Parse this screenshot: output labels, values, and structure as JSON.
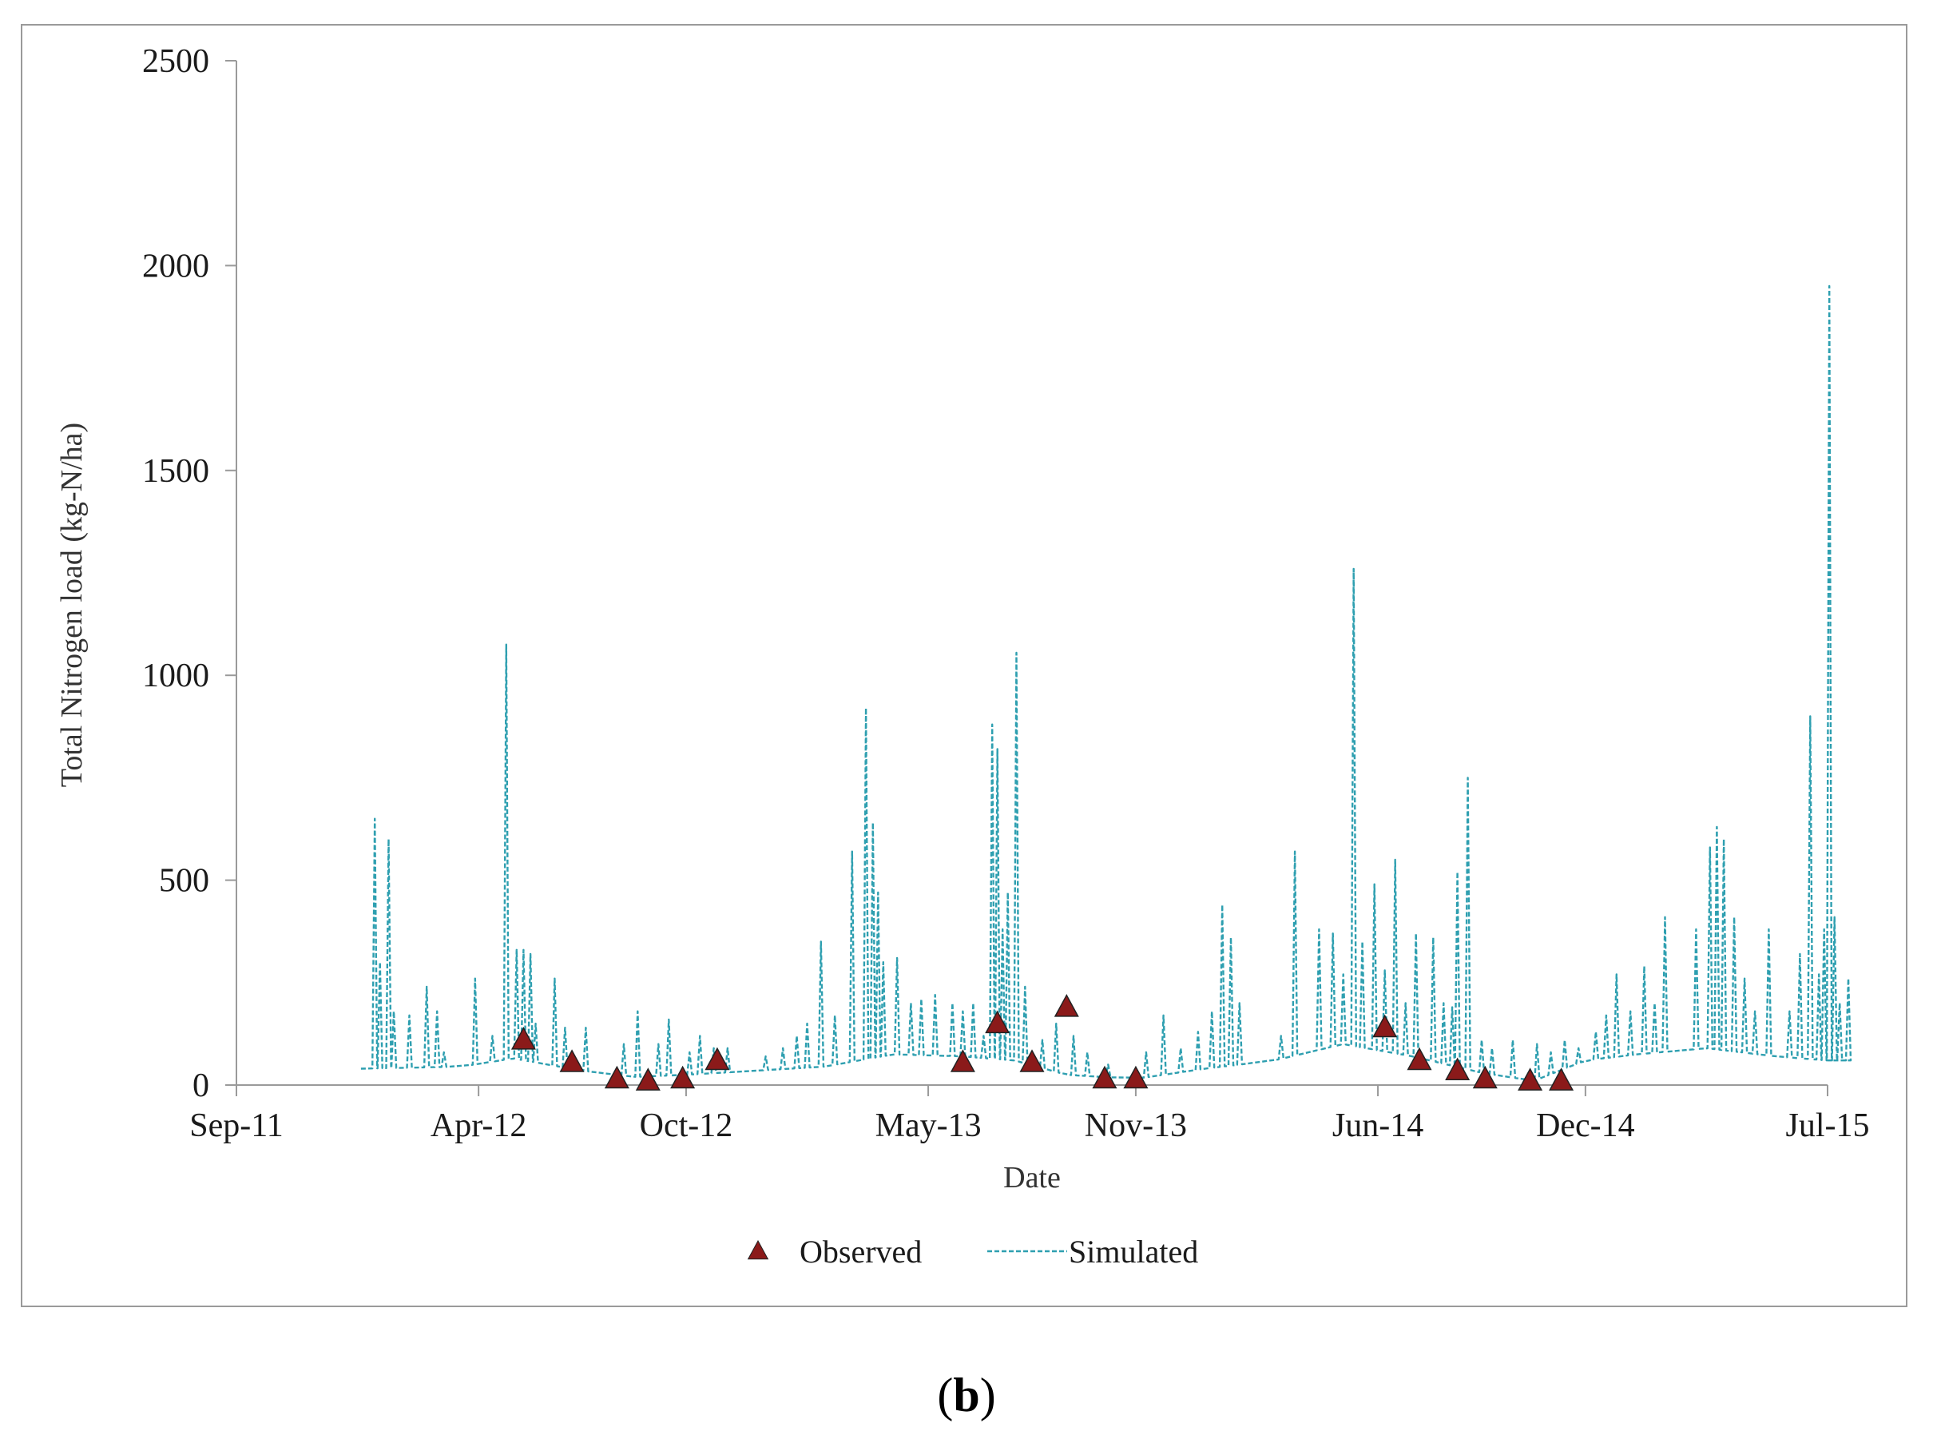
{
  "chart_data": {
    "type": "line",
    "title": "",
    "xlabel": "Date",
    "ylabel": "Total Nitrogen load (kg-N/ha)",
    "ylim": [
      0,
      2500
    ],
    "yticks": [
      0,
      500,
      1000,
      1500,
      2000,
      2500
    ],
    "xlim_months": [
      0,
      46
    ],
    "xticks": [
      {
        "label": "Sep-11",
        "month": 0
      },
      {
        "label": "Apr-12",
        "month": 7
      },
      {
        "label": "Oct-12",
        "month": 13
      },
      {
        "label": "May-13",
        "month": 20
      },
      {
        "label": "Nov-13",
        "month": 26
      },
      {
        "label": "Jun-14",
        "month": 33
      },
      {
        "label": "Dec-14",
        "month": 39
      },
      {
        "label": "Jul-15",
        "month": 46
      }
    ],
    "legend": [
      "Observed",
      "Simulated"
    ],
    "legend_position": "bottom-center",
    "colors": {
      "simulated": "#2e9fb0",
      "observed": "#8b1a1a",
      "observed_edge": "#222222",
      "frame": "#9a9a9a"
    },
    "series": [
      {
        "name": "Observed",
        "marker": "triangle",
        "points": [
          {
            "month": 8.3,
            "y": 110
          },
          {
            "month": 9.7,
            "y": 55
          },
          {
            "month": 11.0,
            "y": 15
          },
          {
            "month": 11.9,
            "y": 10
          },
          {
            "month": 12.9,
            "y": 15
          },
          {
            "month": 13.9,
            "y": 60
          },
          {
            "month": 21.0,
            "y": 55
          },
          {
            "month": 22.0,
            "y": 150
          },
          {
            "month": 23.0,
            "y": 55
          },
          {
            "month": 24.0,
            "y": 190
          },
          {
            "month": 25.1,
            "y": 15
          },
          {
            "month": 26.0,
            "y": 15
          },
          {
            "month": 33.2,
            "y": 140
          },
          {
            "month": 34.2,
            "y": 60
          },
          {
            "month": 35.3,
            "y": 35
          },
          {
            "month": 36.1,
            "y": 15
          },
          {
            "month": 37.4,
            "y": 10
          },
          {
            "month": 38.3,
            "y": 10
          }
        ]
      },
      {
        "name": "Simulated",
        "style": "dashed",
        "baseline": [
          {
            "month": 3.6,
            "y": 40
          },
          {
            "month": 6.5,
            "y": 45
          },
          {
            "month": 8.0,
            "y": 65
          },
          {
            "month": 10.0,
            "y": 35
          },
          {
            "month": 11.5,
            "y": 20
          },
          {
            "month": 13.0,
            "y": 25
          },
          {
            "month": 15.0,
            "y": 35
          },
          {
            "month": 17.0,
            "y": 45
          },
          {
            "month": 19.0,
            "y": 75
          },
          {
            "month": 21.0,
            "y": 70
          },
          {
            "month": 22.5,
            "y": 60
          },
          {
            "month": 24.0,
            "y": 25
          },
          {
            "month": 26.0,
            "y": 15
          },
          {
            "month": 28.0,
            "y": 40
          },
          {
            "month": 30.0,
            "y": 60
          },
          {
            "month": 32.0,
            "y": 100
          },
          {
            "month": 34.0,
            "y": 70
          },
          {
            "month": 36.0,
            "y": 30
          },
          {
            "month": 37.5,
            "y": 10
          },
          {
            "month": 39.0,
            "y": 60
          },
          {
            "month": 40.5,
            "y": 75
          },
          {
            "month": 42.5,
            "y": 90
          },
          {
            "month": 44.5,
            "y": 70
          },
          {
            "month": 46.0,
            "y": 60
          }
        ],
        "peaks": [
          {
            "month": 4.0,
            "y": 650
          },
          {
            "month": 4.15,
            "y": 300
          },
          {
            "month": 4.4,
            "y": 600
          },
          {
            "month": 4.55,
            "y": 180
          },
          {
            "month": 5.0,
            "y": 170
          },
          {
            "month": 5.5,
            "y": 240
          },
          {
            "month": 5.8,
            "y": 180
          },
          {
            "month": 6.0,
            "y": 80
          },
          {
            "month": 6.9,
            "y": 260
          },
          {
            "month": 7.4,
            "y": 120
          },
          {
            "month": 7.8,
            "y": 1075
          },
          {
            "month": 8.1,
            "y": 330
          },
          {
            "month": 8.3,
            "y": 330
          },
          {
            "month": 8.5,
            "y": 320
          },
          {
            "month": 8.65,
            "y": 150
          },
          {
            "month": 9.2,
            "y": 260
          },
          {
            "month": 9.5,
            "y": 140
          },
          {
            "month": 10.1,
            "y": 140
          },
          {
            "month": 11.2,
            "y": 100
          },
          {
            "month": 11.6,
            "y": 180
          },
          {
            "month": 12.2,
            "y": 100
          },
          {
            "month": 12.5,
            "y": 160
          },
          {
            "month": 13.1,
            "y": 80
          },
          {
            "month": 13.4,
            "y": 120
          },
          {
            "month": 13.8,
            "y": 90
          },
          {
            "month": 14.2,
            "y": 90
          },
          {
            "month": 15.3,
            "y": 70
          },
          {
            "month": 15.8,
            "y": 90
          },
          {
            "month": 16.2,
            "y": 120
          },
          {
            "month": 16.5,
            "y": 150
          },
          {
            "month": 16.9,
            "y": 350
          },
          {
            "month": 17.3,
            "y": 170
          },
          {
            "month": 17.8,
            "y": 570
          },
          {
            "month": 18.2,
            "y": 920
          },
          {
            "month": 18.4,
            "y": 640
          },
          {
            "month": 18.55,
            "y": 470
          },
          {
            "month": 18.7,
            "y": 300
          },
          {
            "month": 19.1,
            "y": 310
          },
          {
            "month": 19.5,
            "y": 200
          },
          {
            "month": 19.8,
            "y": 210
          },
          {
            "month": 20.2,
            "y": 220
          },
          {
            "month": 20.7,
            "y": 200
          },
          {
            "month": 21.0,
            "y": 180
          },
          {
            "month": 21.3,
            "y": 200
          },
          {
            "month": 21.6,
            "y": 120
          },
          {
            "month": 21.85,
            "y": 880
          },
          {
            "month": 22.0,
            "y": 820
          },
          {
            "month": 22.15,
            "y": 380
          },
          {
            "month": 22.3,
            "y": 470
          },
          {
            "month": 22.55,
            "y": 1055
          },
          {
            "month": 22.8,
            "y": 240
          },
          {
            "month": 23.3,
            "y": 110
          },
          {
            "month": 23.7,
            "y": 150
          },
          {
            "month": 24.2,
            "y": 120
          },
          {
            "month": 24.6,
            "y": 80
          },
          {
            "month": 25.2,
            "y": 50
          },
          {
            "month": 26.3,
            "y": 80
          },
          {
            "month": 26.8,
            "y": 170
          },
          {
            "month": 27.3,
            "y": 90
          },
          {
            "month": 27.8,
            "y": 130
          },
          {
            "month": 28.2,
            "y": 180
          },
          {
            "month": 28.5,
            "y": 440
          },
          {
            "month": 28.75,
            "y": 360
          },
          {
            "month": 29.0,
            "y": 200
          },
          {
            "month": 30.2,
            "y": 120
          },
          {
            "month": 30.6,
            "y": 570
          },
          {
            "month": 31.3,
            "y": 380
          },
          {
            "month": 31.7,
            "y": 370
          },
          {
            "month": 32.0,
            "y": 270
          },
          {
            "month": 32.3,
            "y": 1260
          },
          {
            "month": 32.55,
            "y": 350
          },
          {
            "month": 32.9,
            "y": 490
          },
          {
            "month": 33.2,
            "y": 280
          },
          {
            "month": 33.5,
            "y": 550
          },
          {
            "month": 33.8,
            "y": 200
          },
          {
            "month": 34.1,
            "y": 370
          },
          {
            "month": 34.6,
            "y": 360
          },
          {
            "month": 34.9,
            "y": 200
          },
          {
            "month": 35.15,
            "y": 190
          },
          {
            "month": 35.3,
            "y": 520
          },
          {
            "month": 35.6,
            "y": 750
          },
          {
            "month": 36.0,
            "y": 110
          },
          {
            "month": 36.3,
            "y": 90
          },
          {
            "month": 36.9,
            "y": 110
          },
          {
            "month": 37.6,
            "y": 100
          },
          {
            "month": 38.0,
            "y": 80
          },
          {
            "month": 38.4,
            "y": 110
          },
          {
            "month": 38.8,
            "y": 90
          },
          {
            "month": 39.3,
            "y": 130
          },
          {
            "month": 39.6,
            "y": 170
          },
          {
            "month": 39.9,
            "y": 270
          },
          {
            "month": 40.3,
            "y": 180
          },
          {
            "month": 40.7,
            "y": 290
          },
          {
            "month": 41.0,
            "y": 200
          },
          {
            "month": 41.3,
            "y": 410
          },
          {
            "month": 42.2,
            "y": 380
          },
          {
            "month": 42.6,
            "y": 580
          },
          {
            "month": 42.8,
            "y": 630
          },
          {
            "month": 43.0,
            "y": 600
          },
          {
            "month": 43.3,
            "y": 410
          },
          {
            "month": 43.6,
            "y": 260
          },
          {
            "month": 43.9,
            "y": 180
          },
          {
            "month": 44.3,
            "y": 380
          },
          {
            "month": 44.9,
            "y": 180
          },
          {
            "month": 45.2,
            "y": 320
          },
          {
            "month": 45.5,
            "y": 900
          },
          {
            "month": 45.75,
            "y": 270
          },
          {
            "month": 45.9,
            "y": 380
          },
          {
            "month": 46.05,
            "y": 1950
          },
          {
            "month": 46.2,
            "y": 410
          },
          {
            "month": 46.35,
            "y": 200
          },
          {
            "month": 46.6,
            "y": 260
          }
        ]
      }
    ]
  },
  "panel_label": {
    "open": "(",
    "letter": "b",
    "close": ")"
  }
}
